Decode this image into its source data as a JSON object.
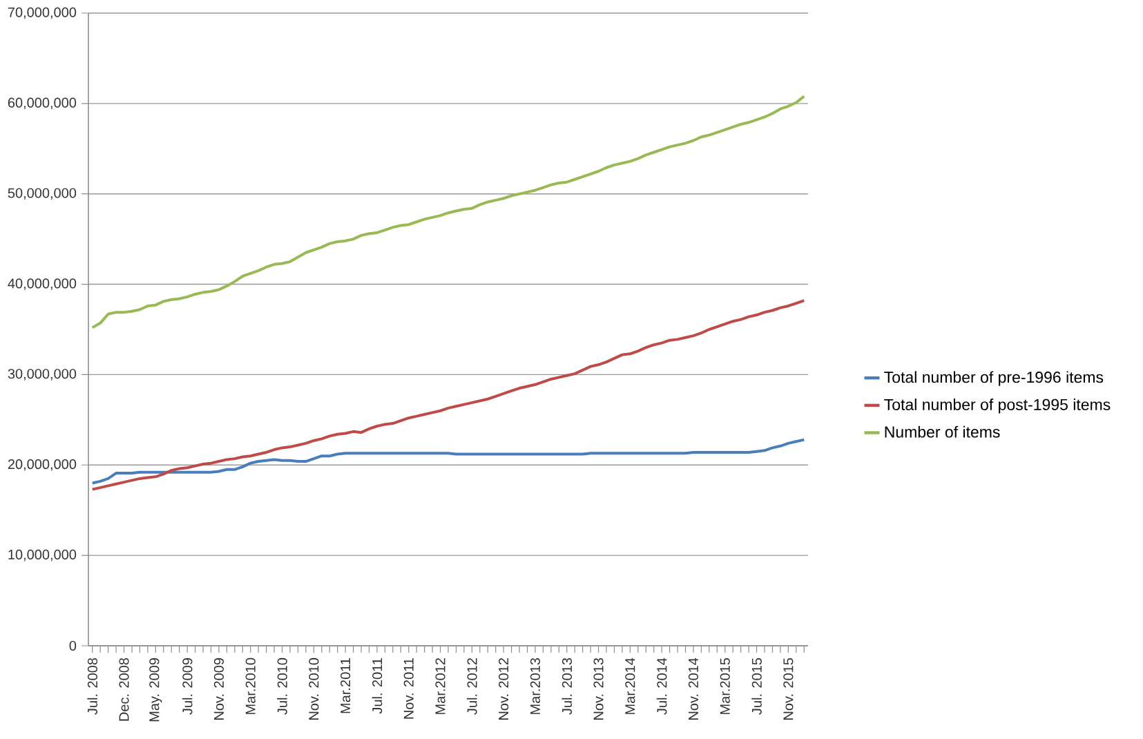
{
  "chart_data": {
    "type": "line",
    "categories": [
      "Jul. 2008",
      null,
      null,
      null,
      "Dec. 2008",
      null,
      null,
      null,
      "May. 2009",
      null,
      null,
      null,
      "Jul. 2009",
      null,
      null,
      null,
      "Nov. 2009",
      null,
      null,
      null,
      "Mar.2010",
      null,
      null,
      null,
      "Jul. 2010",
      null,
      null,
      null,
      "Nov. 2010",
      null,
      null,
      null,
      "Mar.2011",
      null,
      null,
      null,
      "Jul. 2011",
      null,
      null,
      null,
      "Nov. 2011",
      null,
      null,
      null,
      "Mar.2012",
      null,
      null,
      null,
      "Jul. 2012",
      null,
      null,
      null,
      "Nov. 2012",
      null,
      null,
      null,
      "Mar.2013",
      null,
      null,
      null,
      "Jul. 2013",
      null,
      null,
      null,
      "Nov. 2013",
      null,
      null,
      null,
      "Mar.2014",
      null,
      null,
      null,
      "Jul. 2014",
      null,
      null,
      null,
      "Nov. 2014",
      null,
      null,
      null,
      "Mar.2015",
      null,
      null,
      null,
      "Jul. 2015",
      null,
      null,
      null,
      "Nov. 2015",
      null,
      null
    ],
    "series": [
      {
        "name": "Total number of pre-1996 items",
        "color": "#4a7ebb",
        "values": [
          18000000,
          18200000,
          18500000,
          19100000,
          19100000,
          19100000,
          19200000,
          19200000,
          19200000,
          19200000,
          19200000,
          19200000,
          19200000,
          19200000,
          19200000,
          19200000,
          19300000,
          19500000,
          19500000,
          19800000,
          20200000,
          20400000,
          20500000,
          20600000,
          20500000,
          20500000,
          20400000,
          20400000,
          20700000,
          21000000,
          21000000,
          21200000,
          21300000,
          21300000,
          21300000,
          21300000,
          21300000,
          21300000,
          21300000,
          21300000,
          21300000,
          21300000,
          21300000,
          21300000,
          21300000,
          21300000,
          21200000,
          21200000,
          21200000,
          21200000,
          21200000,
          21200000,
          21200000,
          21200000,
          21200000,
          21200000,
          21200000,
          21200000,
          21200000,
          21200000,
          21200000,
          21200000,
          21200000,
          21300000,
          21300000,
          21300000,
          21300000,
          21300000,
          21300000,
          21300000,
          21300000,
          21300000,
          21300000,
          21300000,
          21300000,
          21300000,
          21400000,
          21400000,
          21400000,
          21400000,
          21400000,
          21400000,
          21400000,
          21400000,
          21500000,
          21600000,
          21900000,
          22100000,
          22400000,
          22600000,
          22800000
        ]
      },
      {
        "name": "Total number of post-1995 items",
        "color": "#be4b48",
        "values": [
          17300000,
          17500000,
          17700000,
          17900000,
          18100000,
          18300000,
          18500000,
          18600000,
          18700000,
          19000000,
          19400000,
          19600000,
          19700000,
          19900000,
          20100000,
          20200000,
          20400000,
          20600000,
          20700000,
          20900000,
          21000000,
          21200000,
          21400000,
          21700000,
          21900000,
          22000000,
          22200000,
          22400000,
          22700000,
          22900000,
          23200000,
          23400000,
          23500000,
          23700000,
          23600000,
          24000000,
          24300000,
          24500000,
          24600000,
          24900000,
          25200000,
          25400000,
          25600000,
          25800000,
          26000000,
          26300000,
          26500000,
          26700000,
          26900000,
          27100000,
          27300000,
          27600000,
          27900000,
          28200000,
          28500000,
          28700000,
          28900000,
          29200000,
          29500000,
          29700000,
          29900000,
          30100000,
          30500000,
          30900000,
          31100000,
          31400000,
          31800000,
          32200000,
          32300000,
          32600000,
          33000000,
          33300000,
          33500000,
          33800000,
          33900000,
          34100000,
          34300000,
          34600000,
          35000000,
          35300000,
          35600000,
          35900000,
          36100000,
          36400000,
          36600000,
          36900000,
          37100000,
          37400000,
          37600000,
          37900000,
          38200000
        ]
      },
      {
        "name": "Number of items",
        "color": "#98b954",
        "values": [
          35200000,
          35700000,
          36700000,
          36900000,
          36900000,
          37000000,
          37200000,
          37600000,
          37700000,
          38100000,
          38300000,
          38400000,
          38600000,
          38900000,
          39100000,
          39200000,
          39400000,
          39800000,
          40300000,
          40900000,
          41200000,
          41500000,
          41900000,
          42200000,
          42300000,
          42500000,
          43000000,
          43500000,
          43800000,
          44100000,
          44500000,
          44700000,
          44800000,
          45000000,
          45400000,
          45600000,
          45700000,
          46000000,
          46300000,
          46500000,
          46600000,
          46900000,
          47200000,
          47400000,
          47600000,
          47900000,
          48100000,
          48300000,
          48400000,
          48800000,
          49100000,
          49300000,
          49500000,
          49800000,
          50000000,
          50200000,
          50400000,
          50700000,
          51000000,
          51200000,
          51300000,
          51600000,
          51900000,
          52200000,
          52500000,
          52900000,
          53200000,
          53400000,
          53600000,
          53900000,
          54300000,
          54600000,
          54900000,
          55200000,
          55400000,
          55600000,
          55900000,
          56300000,
          56500000,
          56800000,
          57100000,
          57400000,
          57700000,
          57900000,
          58200000,
          58500000,
          58900000,
          59400000,
          59700000,
          60100000,
          60800000
        ]
      }
    ],
    "ylim": [
      0,
      70000000
    ],
    "yticks": [
      {
        "value": 0,
        "label": "0"
      },
      {
        "value": 10000000,
        "label": "10,000,000"
      },
      {
        "value": 20000000,
        "label": "20,000,000"
      },
      {
        "value": 30000000,
        "label": "30,000,000"
      },
      {
        "value": 40000000,
        "label": "40,000,000"
      },
      {
        "value": 50000000,
        "label": "50,000,000"
      },
      {
        "value": 60000000,
        "label": "60,000,000"
      },
      {
        "value": 70000000,
        "label": "70,000,000"
      }
    ],
    "grid": "y",
    "legend": "right",
    "marker": "none",
    "line_style": "solid"
  }
}
